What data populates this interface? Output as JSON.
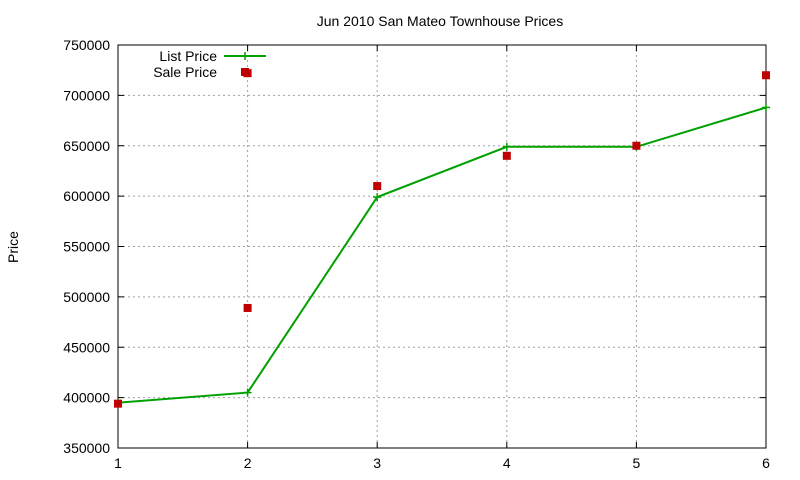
{
  "chart_data": {
    "type": "line",
    "title": "Jun 2010 San Mateo Townhouse Prices",
    "xlabel": "",
    "ylabel": "Price",
    "xlim": [
      1,
      6
    ],
    "ylim": [
      350000,
      750000
    ],
    "x_ticks": [
      "1",
      "2",
      "3",
      "4",
      "5",
      "6"
    ],
    "y_ticks": [
      "350000",
      "400000",
      "450000",
      "500000",
      "550000",
      "600000",
      "650000",
      "700000",
      "750000"
    ],
    "grid": true,
    "legend_position": "top-left",
    "series": [
      {
        "name": "List Price",
        "style": "line-with-plus-markers",
        "color": "#00a000",
        "points": [
          {
            "x": 1,
            "y": 395000
          },
          {
            "x": 2,
            "y": 405000
          },
          {
            "x": 3,
            "y": 599000
          },
          {
            "x": 4,
            "y": 649000
          },
          {
            "x": 5,
            "y": 649000
          },
          {
            "x": 6,
            "y": 688000
          }
        ]
      },
      {
        "name": "Sale Price",
        "style": "square-markers",
        "color": "#c00000",
        "points": [
          {
            "x": 1,
            "y": 394000
          },
          {
            "x": 2,
            "y": 489000
          },
          {
            "x": 2,
            "y": 722000
          },
          {
            "x": 3,
            "y": 610000
          },
          {
            "x": 4,
            "y": 640000
          },
          {
            "x": 5,
            "y": 650000
          },
          {
            "x": 6,
            "y": 720000
          }
        ]
      }
    ]
  }
}
